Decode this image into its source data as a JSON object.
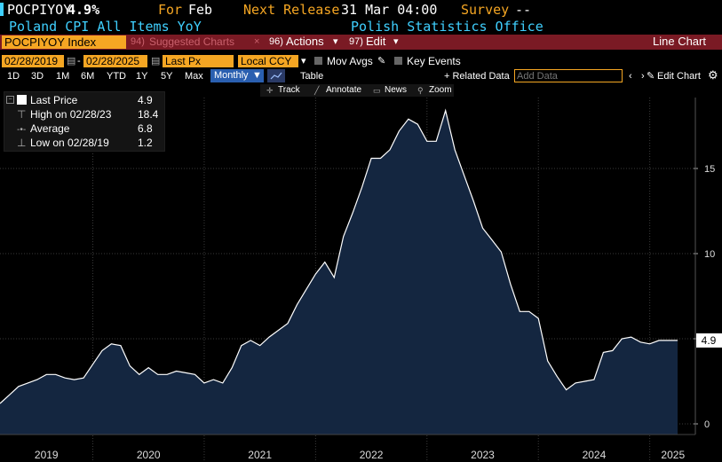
{
  "header": {
    "ticker": "POCPIYOY",
    "value": "4.9%",
    "for_label": "For",
    "for_value": "Feb",
    "release_label": "Next Release",
    "release_value": "31 Mar 04:00",
    "survey_label": "Survey",
    "survey_value": "--",
    "subtitle": "Poland CPI All Items YoY",
    "source": "Polish Statistics Office"
  },
  "toolbar1": {
    "security": "POCPIYOY Index",
    "suggested": "Suggested Charts",
    "suggested_num": "94)",
    "actions_num": "96)",
    "actions": "Actions",
    "edit_num": "97)",
    "edit": "Edit",
    "chart_type": "Line Chart"
  },
  "toolbar2": {
    "start_date": "02/28/2019",
    "end_date": "02/28/2025",
    "field": "Last Px",
    "currency": "Local CCY",
    "mov_avgs": "Mov Avgs",
    "key_events": "Key Events"
  },
  "toolbar3": {
    "ranges": [
      "1D",
      "3D",
      "1M",
      "6M",
      "YTD",
      "1Y",
      "5Y",
      "Max"
    ],
    "frequency": "Monthly",
    "table": "Table",
    "related": "+ Related Data",
    "add_data_placeholder": "Add Data",
    "edit_chart": "Edit Chart"
  },
  "toolbar4": {
    "track": "Track",
    "annotate": "Annotate",
    "news": "News",
    "zoom": "Zoom"
  },
  "legend": {
    "last_label": "Last Price",
    "last_value": "4.9",
    "high_label": "High on 02/28/23",
    "high_value": "18.4",
    "avg_label": "Average",
    "avg_value": "6.8",
    "low_label": "Low on 02/28/19",
    "low_value": "1.2"
  },
  "colors": {
    "orange": "#f5a623",
    "cyan": "#3fd0ff",
    "area_fill": "#142640",
    "line": "#ffffff",
    "toolbar_red": "#7a1a24"
  },
  "chart_data": {
    "type": "area",
    "x_labels": [
      "2019",
      "2020",
      "2021",
      "2022",
      "2023",
      "2024",
      "2025"
    ],
    "y_ticks": [
      0,
      5,
      10,
      15
    ],
    "ylim": [
      0,
      19
    ],
    "last_value_label": "4.9",
    "values": [
      1.2,
      1.7,
      2.2,
      2.4,
      2.6,
      2.9,
      2.9,
      2.7,
      2.6,
      2.7,
      3.5,
      4.3,
      4.7,
      4.6,
      3.4,
      2.9,
      3.3,
      2.9,
      2.9,
      3.1,
      3.0,
      2.9,
      2.4,
      2.6,
      2.4,
      3.3,
      4.6,
      4.9,
      4.6,
      5.1,
      5.5,
      5.9,
      7.0,
      7.9,
      8.8,
      9.5,
      8.6,
      11.0,
      12.4,
      13.9,
      15.6,
      15.6,
      16.1,
      17.2,
      17.9,
      17.6,
      16.6,
      16.6,
      18.4,
      16.1,
      14.6,
      13.1,
      11.5,
      10.8,
      10.1,
      8.2,
      6.6,
      6.6,
      6.2,
      3.7,
      2.8,
      2.0,
      2.4,
      2.5,
      2.6,
      4.2,
      4.3,
      5.0,
      5.1,
      4.8,
      4.7,
      4.9,
      4.9,
      4.9
    ]
  }
}
